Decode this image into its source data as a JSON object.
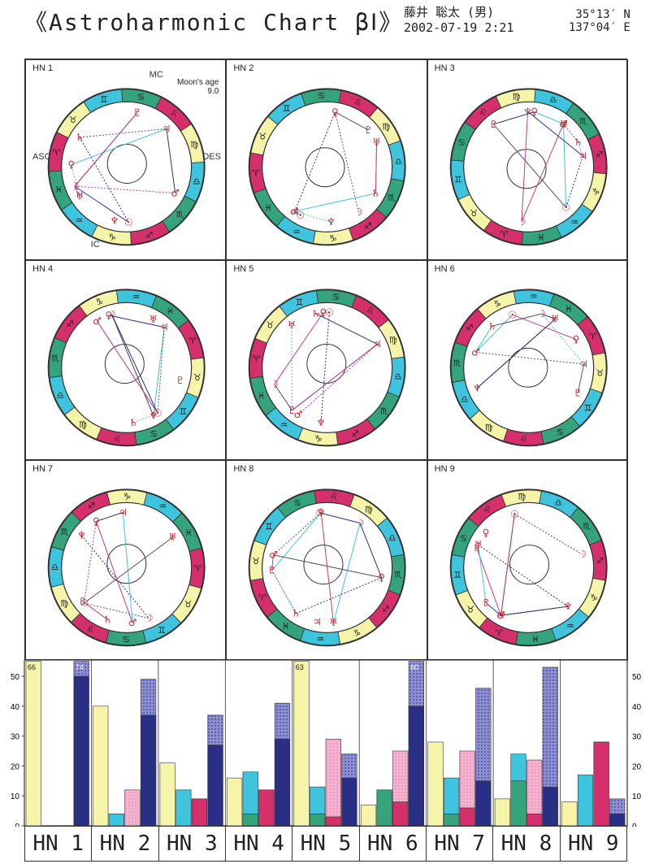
{
  "header": {
    "title": "《Astroharmonic Chart βⅠ》",
    "name": "藤井 聡太 (男)",
    "datetime": "2002-07-19   2:21",
    "lat": "35°13′ N",
    "lon": "137°04′ E"
  },
  "cells": [
    {
      "label": "HN 1"
    },
    {
      "label": "HN 2"
    },
    {
      "label": "HN 3"
    },
    {
      "label": "HN 4"
    },
    {
      "label": "HN 5"
    },
    {
      "label": "HN 6"
    },
    {
      "label": "HN 7"
    },
    {
      "label": "HN 8"
    },
    {
      "label": "HN 9"
    }
  ],
  "hn1_extra": {
    "moon_age_label": "Moon's age",
    "moon_age": "9.0",
    "mc": "MC",
    "asc": "ASC",
    "des": "DES",
    "ic": "IC"
  },
  "chart_data": {
    "type": "bar",
    "categories": [
      "HN 1",
      "HN 2",
      "HN 3",
      "HN 4",
      "HN 5",
      "HN 6",
      "HN 7",
      "HN 8",
      "HN 9"
    ],
    "ylim": [
      0,
      50
    ],
    "yticks": [
      0,
      10,
      20,
      30,
      40,
      50
    ],
    "colors": {
      "yellow": "#f6f4a8",
      "cyan": "#3fc4de",
      "green": "#35a37c",
      "pink": "#f4a6c8",
      "magenta": "#d52f6c",
      "navy": "#2a2f86",
      "navy_hatch": "#8e8fd0"
    },
    "groups": [
      {
        "yellow": 66,
        "cyan": 0,
        "cyan_inner": 0,
        "pink": 0,
        "pink_inner": 0,
        "navy": 50,
        "navy_total": 74
      },
      {
        "yellow": 40,
        "cyan": 4,
        "cyan_inner": 0,
        "pink": 12,
        "pink_inner": 0,
        "navy": 37,
        "navy_total": 49
      },
      {
        "yellow": 21,
        "cyan": 12,
        "cyan_inner": 0,
        "pink": 9,
        "pink_inner": 9,
        "navy": 27,
        "navy_total": 37
      },
      {
        "yellow": 16,
        "cyan": 18,
        "cyan_inner": 4,
        "pink": 12,
        "pink_inner": 12,
        "navy": 29,
        "navy_total": 41
      },
      {
        "yellow": 63,
        "cyan": 13,
        "cyan_inner": 4,
        "pink": 29,
        "pink_inner": 3,
        "navy": 16,
        "navy_total": 24
      },
      {
        "yellow": 7,
        "cyan": 12,
        "cyan_inner": 12,
        "pink": 25,
        "pink_inner": 8,
        "navy": 40,
        "navy_total": 60
      },
      {
        "yellow": 28,
        "cyan": 16,
        "cyan_inner": 4,
        "pink": 25,
        "pink_inner": 6,
        "navy": 15,
        "navy_total": 46
      },
      {
        "yellow": 9,
        "cyan": 24,
        "cyan_inner": 15,
        "pink": 22,
        "pink_inner": 4,
        "navy": 13,
        "navy_total": 53
      },
      {
        "yellow": 8,
        "cyan": 17,
        "cyan_inner": 0,
        "pink": 28,
        "pink_inner": 28,
        "navy": 4,
        "navy_total": 9
      }
    ],
    "overflow_labels": [
      {
        "group": 0,
        "text": "66"
      },
      {
        "group": 0,
        "text": "74"
      },
      {
        "group": 4,
        "text": "63"
      },
      {
        "group": 5,
        "text": "60"
      }
    ]
  }
}
